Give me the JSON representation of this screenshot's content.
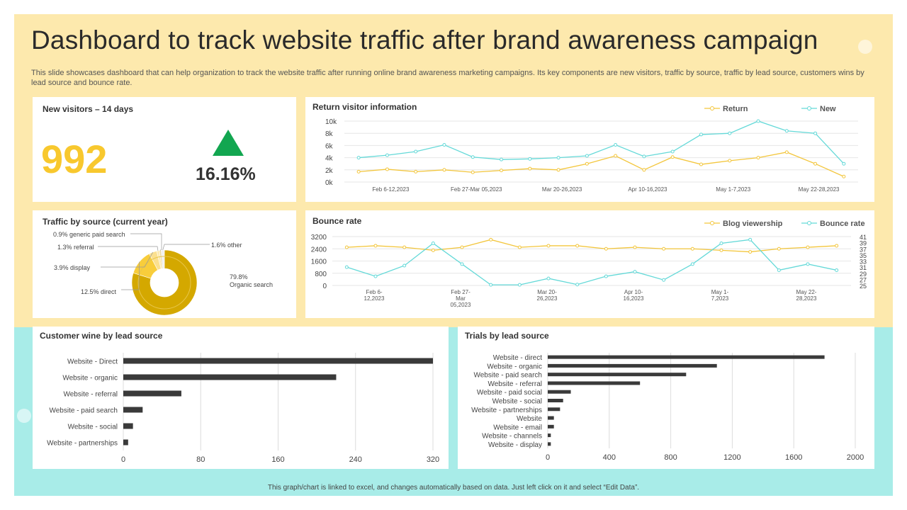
{
  "header": {
    "title": "Dashboard to track website traffic after brand awareness campaign",
    "subtitle": "This slide showcases dashboard that can help organization to track the website traffic after running online brand awareness marketing campaigns. Its key components are new visitors, traffic by source, traffic by lead source, customers wins by lead source and bounce rate."
  },
  "new_visitors": {
    "title": "New visitors – 14 days",
    "value": "992",
    "change": "16.16%",
    "colors": {
      "value": "#f8c82e",
      "arrow": "#12a650"
    }
  },
  "footer_note": "This graph/chart is linked to excel, and changes automatically based on data. Just left click on it and select “Edit Data”.",
  "colors": {
    "yellow": "#f3c63c",
    "cyan": "#64d9d8",
    "bar": "#3a3a3a",
    "gold": "#d4a800",
    "frame_top": "#fde9ad",
    "frame_bottom": "#a8ece8"
  },
  "chart_data": [
    {
      "type": "line",
      "title": "Return visitor information",
      "x_labels": [
        "Feb 6-12,2023",
        "Feb 27-Mar 05,2023",
        "Mar 20-26,2023",
        "Apr 10-16,2023",
        "May 1-7,2023",
        "May 22-28,2023"
      ],
      "y_ticks": [
        "0k",
        "2k",
        "4k",
        "6k",
        "8k",
        "10k"
      ],
      "ylim": [
        0,
        10000
      ],
      "legend_position": "top-right",
      "series": [
        {
          "name": "Return",
          "color": "#f3c63c",
          "values": [
            1700,
            2100,
            1700,
            2000,
            1600,
            1900,
            2200,
            2000,
            3000,
            4300,
            2000,
            4100,
            2900,
            3500,
            4000,
            4900,
            3000,
            900
          ]
        },
        {
          "name": "New",
          "color": "#64d9d8",
          "values": [
            4000,
            4400,
            5000,
            6100,
            4100,
            3700,
            3800,
            4000,
            4300,
            6100,
            4200,
            5000,
            7800,
            8000,
            10000,
            8400,
            8000,
            3000
          ]
        }
      ]
    },
    {
      "type": "line",
      "title": "Bounce rate",
      "x_labels": [
        "Feb 6-12,2023",
        "Feb 27-Mar 05,2023",
        "Mar 20-26,2023",
        "Apr 10-16,2023",
        "May 1-7,2023",
        "May 22-28,2023"
      ],
      "x_label_display": [
        [
          "Feb 6-",
          "12,2023"
        ],
        [
          "Feb 27-",
          "Mar",
          "05,2023"
        ],
        [
          "Mar 20-",
          "26,2023"
        ],
        [
          "Apr 10-",
          "16,2023"
        ],
        [
          "May 1-",
          "7,2023"
        ],
        [
          "May 22-",
          "28,2023"
        ]
      ],
      "y_left_ticks": [
        "0",
        "800",
        "1600",
        "2400",
        "3200"
      ],
      "y_left_lim": [
        0,
        3200
      ],
      "y_right_ticks": [
        "25",
        "27",
        "29",
        "31",
        "33",
        "35",
        "37",
        "39",
        "41"
      ],
      "y_right_lim": [
        25,
        41
      ],
      "legend_position": "top-right",
      "series": [
        {
          "name": "Blog viewership",
          "axis": "left",
          "color": "#f3c63c",
          "values": [
            2500,
            2600,
            2500,
            2300,
            2500,
            3000,
            2500,
            2600,
            2600,
            2400,
            2500,
            2400,
            2400,
            2300,
            2200,
            2400,
            2500,
            2600
          ]
        },
        {
          "name": "Bounce rate",
          "axis": "right",
          "color": "#64d9d8",
          "values": [
            31,
            28,
            31.5,
            38.8,
            32,
            25.2,
            25.2,
            27.3,
            25.3,
            28,
            29.5,
            26.8,
            32,
            38.8,
            40,
            30,
            32,
            30
          ]
        }
      ]
    },
    {
      "type": "pie",
      "title": "Traffic by source (current year)",
      "slices": [
        {
          "label": "79.8%\nOrganic search",
          "value": 79.8
        },
        {
          "label": "12.5% direct",
          "value": 12.5
        },
        {
          "label": "3.9% display",
          "value": 3.9
        },
        {
          "label": "1.3% referral",
          "value": 1.3
        },
        {
          "label": "0.9% generic paid search",
          "value": 0.9
        },
        {
          "label": "1.6% other",
          "value": 1.6
        }
      ],
      "slice_colors": [
        "#d4a800",
        "#f8cd3b",
        "#fbe08f",
        "#fde9ad",
        "#e9d9a4",
        "#f1f1f1"
      ]
    },
    {
      "type": "bar",
      "orientation": "horizontal",
      "title": "Customer wine by lead source",
      "categories": [
        "Website -  Direct",
        "Website -  organic",
        "Website -  referral",
        "Website -  paid search",
        "Website -  social",
        "Website -  partnerships"
      ],
      "values": [
        320,
        220,
        60,
        20,
        10,
        5
      ],
      "x_ticks": [
        "0",
        "80",
        "160",
        "240",
        "320"
      ],
      "xlim": [
        0,
        320
      ]
    },
    {
      "type": "bar",
      "orientation": "horizontal",
      "title": "Trials by lead source",
      "categories": [
        "Website -  direct",
        "Website -  organic",
        "Website -  paid search",
        "Website -  referral",
        "Website -  paid social",
        "Website -  social",
        "Website -  partnerships",
        "Website",
        "Website -  email",
        "Website -  channels",
        "Website -  display"
      ],
      "values": [
        1800,
        1100,
        900,
        600,
        150,
        100,
        80,
        40,
        40,
        20,
        20
      ],
      "x_ticks": [
        "0",
        "400",
        "800",
        "1200",
        "1600",
        "2000"
      ],
      "xlim": [
        0,
        2000
      ]
    }
  ]
}
